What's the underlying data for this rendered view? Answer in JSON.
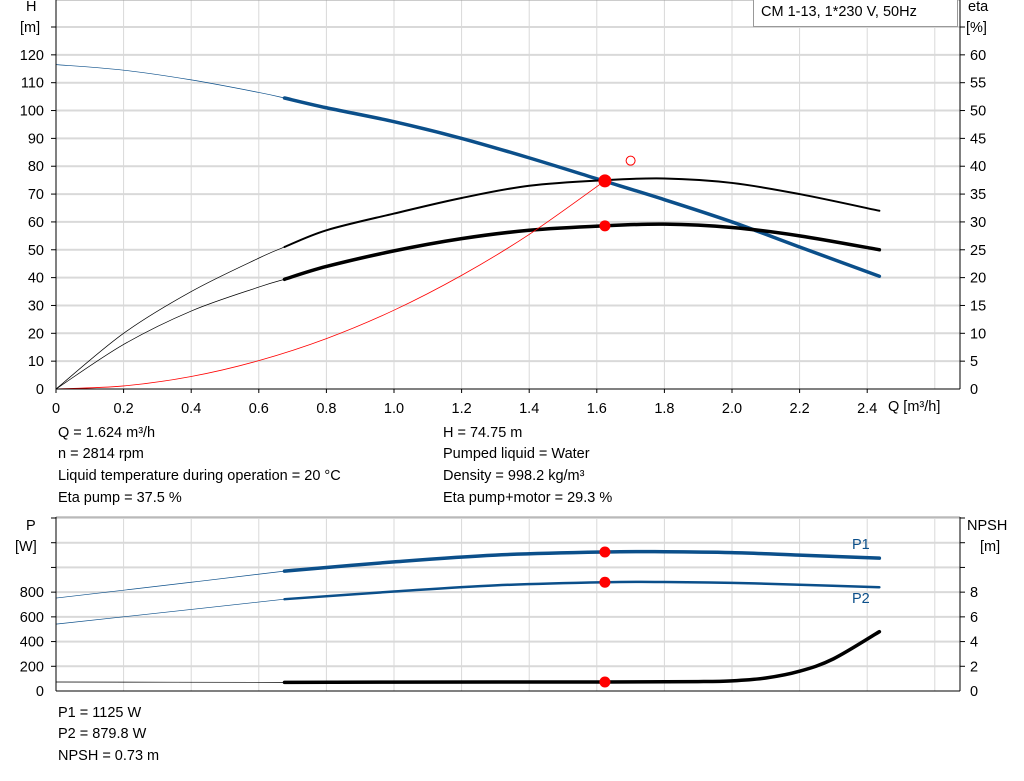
{
  "legend_box": "CM 1-13, 1*230 V, 50Hz",
  "info_top": {
    "left": [
      "Q = 1.624 m³/h",
      "n = 2814 rpm",
      "Liquid temperature during operation = 20 °C",
      "Eta pump = 37.5 %"
    ],
    "right": [
      "H = 74.75 m",
      "Pumped liquid = Water",
      "Density = 998.2 kg/m³",
      "Eta pump+motor = 29.3 %"
    ]
  },
  "info_bottom": [
    "P1 = 1125 W",
    "P2 = 879.8 W",
    "NPSH = 0.73 m"
  ],
  "colors": {
    "head": "#0b4f8a",
    "eta": "#000000",
    "system": "#ff0000",
    "point": "#ff0000",
    "power": "#0b4f8a",
    "npsh": "#000000",
    "grid": "#d9d9d9"
  },
  "chart_data": [
    {
      "type": "line",
      "panel": "head-efficiency",
      "xlabel": "Q [m³/h]",
      "ylabel_left": [
        "H",
        "[m]"
      ],
      "ylabel_right": [
        "eta",
        "[%]"
      ],
      "xlim": [
        0,
        2.6
      ],
      "ylim_left": [
        0,
        130
      ],
      "ylim_right": [
        0,
        65
      ],
      "grid": true,
      "x_ticks": [
        "0",
        "0.2",
        "0.4",
        "0.6",
        "0.8",
        "1.0",
        "1.2",
        "1.4",
        "1.6",
        "1.8",
        "2.0",
        "2.2",
        "2.4"
      ],
      "y_ticks_left": [
        "0",
        "10",
        "20",
        "30",
        "40",
        "50",
        "60",
        "70",
        "80",
        "90",
        "100",
        "110",
        "120"
      ],
      "y_ticks_right": [
        "0",
        "5",
        "10",
        "15",
        "20",
        "25",
        "30",
        "35",
        "40",
        "45",
        "50",
        "55",
        "60"
      ],
      "operating_range": [
        0.676,
        2.436
      ],
      "series": [
        {
          "id": "head",
          "axis": "left",
          "x": [
            0,
            0.2,
            0.4,
            0.6,
            0.676,
            0.8,
            1.0,
            1.2,
            1.4,
            1.6,
            1.8,
            2.0,
            2.2,
            2.436
          ],
          "y": [
            116.5,
            114.5,
            111,
            106.5,
            104.5,
            101,
            96,
            90,
            83,
            75.5,
            68,
            60,
            51,
            40.5
          ]
        },
        {
          "id": "eta-pump",
          "axis": "right",
          "x": [
            0,
            0.2,
            0.4,
            0.6,
            0.676,
            0.8,
            1.0,
            1.2,
            1.4,
            1.624,
            1.8,
            2.0,
            2.2,
            2.436
          ],
          "y": [
            0,
            10,
            17.5,
            23.5,
            25.5,
            28.5,
            31.5,
            34.3,
            36.5,
            37.5,
            37.8,
            37,
            35,
            32
          ]
        },
        {
          "id": "eta-pump-motor",
          "axis": "right",
          "x": [
            0,
            0.2,
            0.4,
            0.6,
            0.676,
            0.8,
            1.0,
            1.2,
            1.4,
            1.624,
            1.8,
            2.0,
            2.2,
            2.436
          ],
          "y": [
            0,
            8,
            14,
            18.3,
            19.7,
            22,
            24.8,
            27,
            28.5,
            29.3,
            29.6,
            29,
            27.5,
            25
          ]
        },
        {
          "id": "system",
          "axis": "left",
          "x": [
            0,
            0.2,
            0.4,
            0.6,
            0.8,
            1.0,
            1.2,
            1.4,
            1.624
          ],
          "y": [
            0,
            1.1,
            4.5,
            10.2,
            18.1,
            28.3,
            40.8,
            55.5,
            74.75
          ]
        }
      ],
      "points": [
        {
          "id": "duty-head",
          "axis": "left",
          "x": 1.624,
          "y": 74.75
        },
        {
          "id": "duty-eta-pump",
          "axis": "right",
          "x": 1.624,
          "y": 37.5
        },
        {
          "id": "duty-eta-pump-motor",
          "axis": "right",
          "x": 1.624,
          "y": 29.3
        }
      ],
      "open_point": {
        "axis": "left",
        "x": 1.7,
        "y": 82
      }
    },
    {
      "type": "line",
      "panel": "power-npsh",
      "ylabel_left": [
        "P",
        "[W]"
      ],
      "ylabel_right": [
        "NPSH",
        "[m]"
      ],
      "xlim": [
        0,
        2.6
      ],
      "ylim_left": [
        0,
        1400
      ],
      "ylim_right": [
        0,
        14
      ],
      "grid": true,
      "y_ticks_left": [
        "0",
        "200",
        "400",
        "600",
        "800"
      ],
      "y_ticks_right": [
        "0",
        "2",
        "4",
        "6",
        "8"
      ],
      "operating_range": [
        0.676,
        2.436
      ],
      "series": [
        {
          "id": "p1",
          "name": "P1",
          "axis": "left",
          "x": [
            0,
            0.4,
            0.676,
            1.0,
            1.3,
            1.624,
            1.8,
            2.0,
            2.2,
            2.436
          ],
          "y": [
            752,
            880,
            970,
            1045,
            1100,
            1125,
            1127,
            1120,
            1100,
            1075
          ]
        },
        {
          "id": "p2",
          "name": "P2",
          "axis": "left",
          "x": [
            0,
            0.4,
            0.676,
            1.0,
            1.3,
            1.624,
            1.8,
            2.0,
            2.2,
            2.436
          ],
          "y": [
            541,
            660,
            743,
            805,
            855,
            880,
            882,
            875,
            860,
            840
          ]
        },
        {
          "id": "npsh",
          "axis": "right",
          "x": [
            0,
            0.676,
            1.0,
            1.624,
            1.9,
            2.0,
            2.1,
            2.2,
            2.3,
            2.436
          ],
          "y": [
            0.73,
            0.7,
            0.72,
            0.73,
            0.76,
            0.82,
            1.05,
            1.6,
            2.6,
            4.8
          ]
        }
      ],
      "points": [
        {
          "id": "duty-p1",
          "axis": "left",
          "x": 1.624,
          "y": 1125
        },
        {
          "id": "duty-p2",
          "axis": "left",
          "x": 1.624,
          "y": 879.8
        },
        {
          "id": "duty-npsh",
          "axis": "right",
          "x": 1.624,
          "y": 0.73
        }
      ]
    }
  ]
}
